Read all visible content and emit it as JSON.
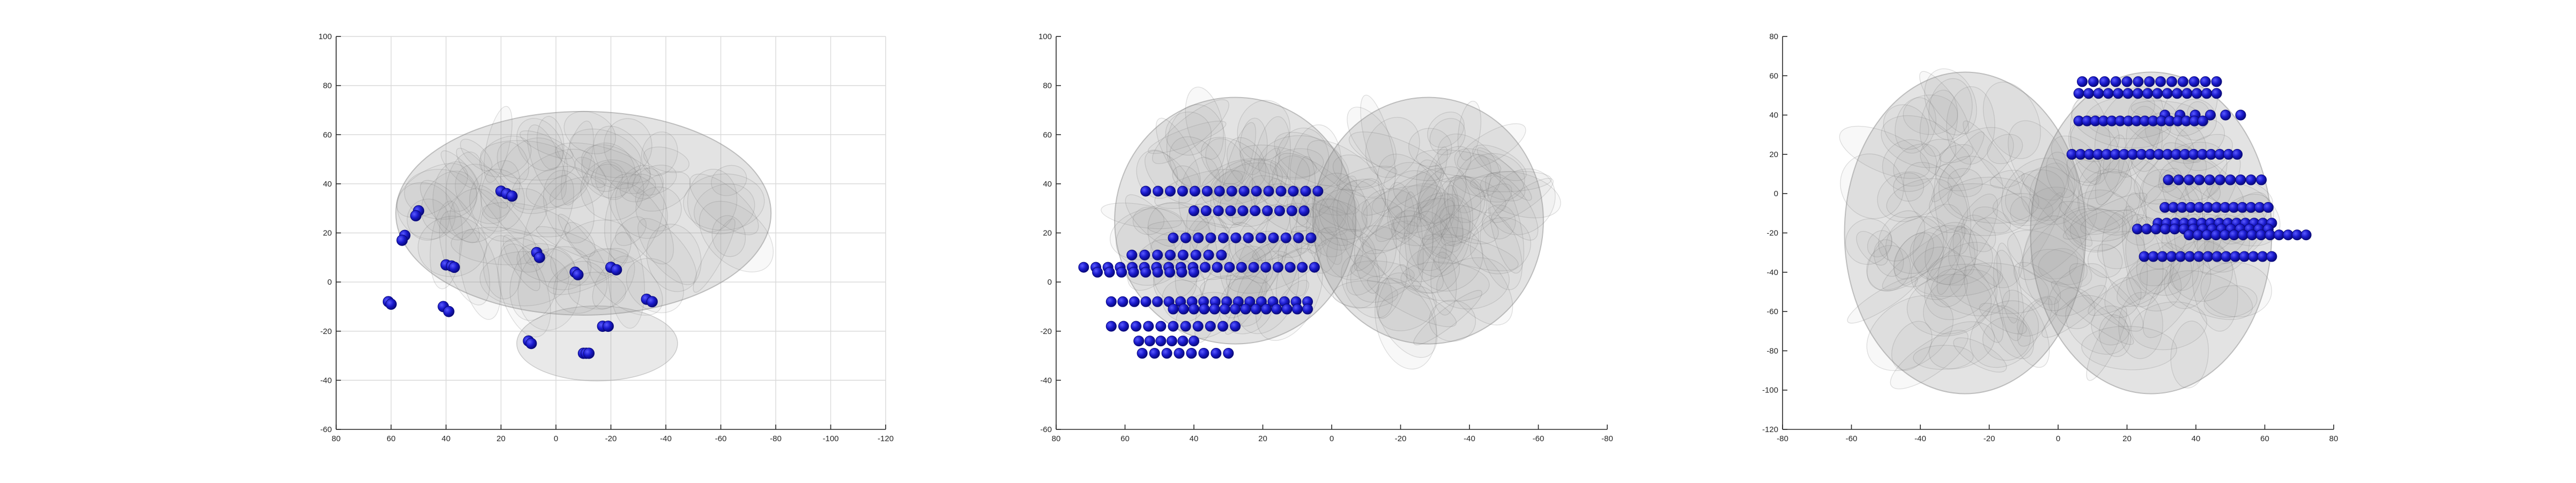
{
  "colors": {
    "electrode": "#1a1acc",
    "brain_fill": "#9a9a9a",
    "grid": "#d9d9d9",
    "axis": "#262626"
  },
  "chart_data": [
    {
      "type": "scatter",
      "view": "sagittal",
      "grid": true,
      "xlim": [
        80,
        -120
      ],
      "ylim": [
        -60,
        100
      ],
      "xticks": [
        80,
        60,
        40,
        20,
        0,
        -20,
        -40,
        -60,
        -80,
        -100,
        -120
      ],
      "yticks": [
        100,
        80,
        60,
        40,
        20,
        0,
        -20,
        -40,
        -60
      ],
      "xtick_labels": [
        "80",
        "60",
        "40",
        "20",
        "0",
        "-20",
        "-40",
        "-60",
        "-80",
        "-100",
        "-120"
      ],
      "ytick_labels": [
        "100",
        "80",
        "60",
        "40",
        "20",
        "0",
        "-20",
        "-40",
        "-60"
      ],
      "series": [
        {
          "points": [
            [
              50,
              29
            ],
            [
              51,
              27
            ],
            [
              55,
              19
            ],
            [
              56,
              17
            ],
            [
              61,
              -8
            ],
            [
              60,
              -9
            ],
            [
              40,
              7
            ],
            [
              38,
              6.5
            ],
            [
              37,
              6
            ],
            [
              41,
              -10
            ],
            [
              39,
              -12
            ],
            [
              20,
              37
            ],
            [
              18,
              36
            ],
            [
              16,
              35
            ],
            [
              7,
              12
            ],
            [
              6,
              10
            ],
            [
              -7,
              4
            ],
            [
              -8,
              3
            ],
            [
              -20,
              6
            ],
            [
              -22,
              5
            ],
            [
              -33,
              -7
            ],
            [
              -35,
              -8
            ],
            [
              10,
              -24
            ],
            [
              9,
              -25
            ],
            [
              -10,
              -29
            ],
            [
              -11,
              -29
            ],
            [
              -12,
              -29
            ],
            [
              -17,
              -18
            ],
            [
              -19,
              -18
            ]
          ]
        }
      ]
    },
    {
      "type": "scatter",
      "view": "coronal",
      "grid": false,
      "xlim": [
        80,
        -80
      ],
      "ylim": [
        -60,
        100
      ],
      "xticks": [
        80,
        60,
        40,
        20,
        0,
        -20,
        -40,
        -60,
        -80
      ],
      "yticks": [
        100,
        80,
        60,
        40,
        20,
        0,
        -20,
        -40,
        -60
      ],
      "xtick_labels": [
        "80",
        "60",
        "40",
        "20",
        "0",
        "-20",
        "-40",
        "-60",
        "-80"
      ],
      "ytick_labels": [
        "100",
        "80",
        "60",
        "40",
        "20",
        "0",
        "-20",
        "-40",
        "-60"
      ],
      "series": [
        {
          "rows": [
            {
              "y": 37,
              "x_start": 54,
              "x_end": 4,
              "n": 15
            },
            {
              "y": 29,
              "x_start": 40,
              "x_end": 8,
              "n": 10
            },
            {
              "y": 18,
              "x_start": 46,
              "x_end": 6,
              "n": 12
            },
            {
              "y": 11,
              "x_start": 58,
              "x_end": 32,
              "n": 8
            },
            {
              "y": 6,
              "x_start": 72,
              "x_end": 5,
              "n": 20
            },
            {
              "y": 4,
              "x_start": 68,
              "x_end": 40,
              "n": 9
            },
            {
              "y": -8,
              "x_start": 64,
              "x_end": 7,
              "n": 18
            },
            {
              "y": -11,
              "x_start": 46,
              "x_end": 7,
              "n": 14
            },
            {
              "y": -18,
              "x_start": 64,
              "x_end": 28,
              "n": 11
            },
            {
              "y": -24,
              "x_start": 56,
              "x_end": 40,
              "n": 6
            },
            {
              "y": -29,
              "x_start": 55,
              "x_end": 30,
              "n": 8
            }
          ]
        }
      ]
    },
    {
      "type": "scatter",
      "view": "axial",
      "grid": false,
      "xlim": [
        -80,
        80
      ],
      "ylim": [
        -120,
        80
      ],
      "xticks": [
        -80,
        -60,
        -40,
        -20,
        0,
        20,
        40,
        60,
        80
      ],
      "yticks": [
        80,
        60,
        40,
        20,
        0,
        -20,
        -40,
        -60,
        -80,
        -100,
        -120
      ],
      "xtick_labels": [
        "-80",
        "-60",
        "-40",
        "-20",
        "0",
        "20",
        "40",
        "60",
        "80"
      ],
      "ytick_labels": [
        "80",
        "60",
        "40",
        "20",
        "0",
        "-20",
        "-40",
        "-60",
        "-80",
        "-100",
        "-120"
      ],
      "series": [
        {
          "rows": [
            {
              "y": 57,
              "x_start": 7,
              "x_end": 46,
              "n": 13
            },
            {
              "y": 51,
              "x_start": 6,
              "x_end": 46,
              "n": 15
            },
            {
              "y": 40,
              "x_start": 31,
              "x_end": 53,
              "n": 6
            },
            {
              "y": 37,
              "x_start": 6,
              "x_end": 42,
              "n": 16
            },
            {
              "y": 20,
              "x_start": 4,
              "x_end": 52,
              "n": 20
            },
            {
              "y": 7,
              "x_start": 32,
              "x_end": 59,
              "n": 10
            },
            {
              "y": -7,
              "x_start": 31,
              "x_end": 61,
              "n": 13
            },
            {
              "y": -15,
              "x_start": 29,
              "x_end": 62,
              "n": 14
            },
            {
              "y": -18,
              "x_start": 23,
              "x_end": 61,
              "n": 15
            },
            {
              "y": -21,
              "x_start": 38,
              "x_end": 72,
              "n": 14
            },
            {
              "y": -32,
              "x_start": 25,
              "x_end": 62,
              "n": 15
            }
          ]
        }
      ]
    }
  ]
}
